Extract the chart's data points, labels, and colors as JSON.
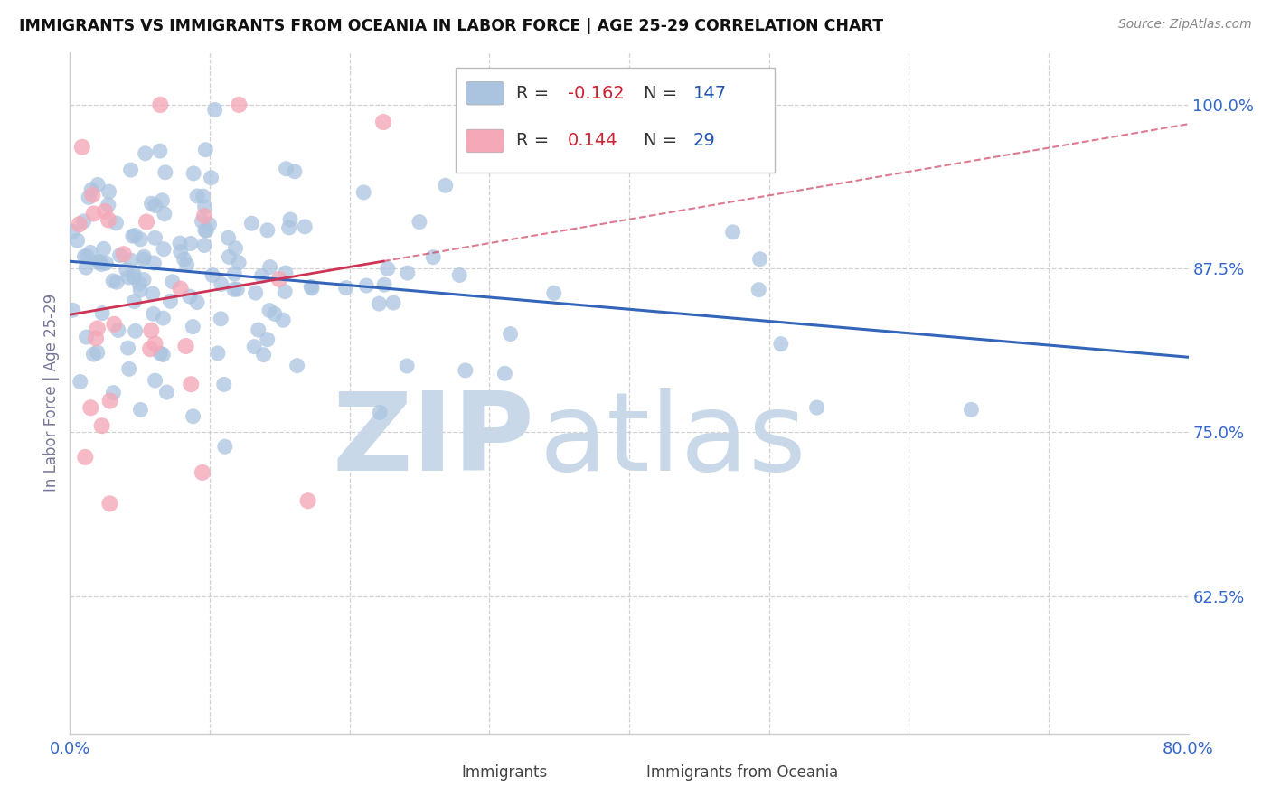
{
  "title": "IMMIGRANTS VS IMMIGRANTS FROM OCEANIA IN LABOR FORCE | AGE 25-29 CORRELATION CHART",
  "source_text": "Source: ZipAtlas.com",
  "ylabel": "In Labor Force | Age 25-29",
  "xlim": [
    0.0,
    0.8
  ],
  "ylim": [
    0.52,
    1.04
  ],
  "x_ticks": [
    0.0,
    0.1,
    0.2,
    0.3,
    0.4,
    0.5,
    0.6,
    0.7,
    0.8
  ],
  "y_ticks_right": [
    0.625,
    0.75,
    0.875,
    1.0
  ],
  "y_tick_labels_right": [
    "62.5%",
    "75.0%",
    "87.5%",
    "100.0%"
  ],
  "grid_color": "#cccccc",
  "background_color": "#ffffff",
  "blue_color": "#aac4e0",
  "pink_color": "#f4a8b8",
  "blue_line_color": "#3366bb",
  "pink_line_color": "#cc3355",
  "tick_color": "#3366cc",
  "r_blue": -0.162,
  "n_blue": 147,
  "r_pink": 0.144,
  "n_pink": 29,
  "seed": 123
}
